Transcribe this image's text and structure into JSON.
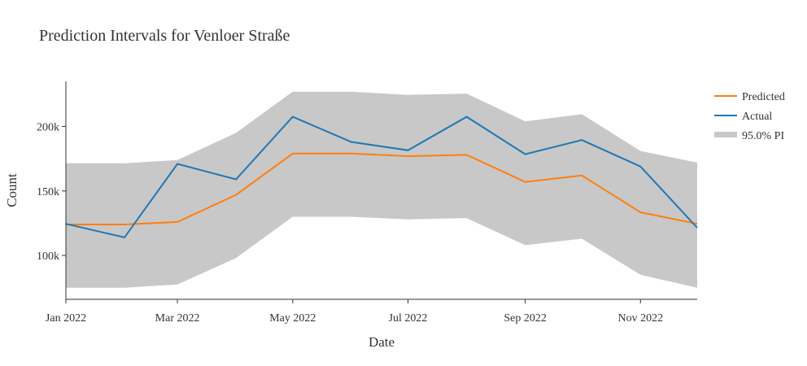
{
  "chart_data": {
    "type": "line",
    "title": "Prediction Intervals for Venloer Straße",
    "xlabel": "Date",
    "ylabel": "Count",
    "x": [
      "2022-01-01",
      "2022-02-01",
      "2022-03-01",
      "2022-04-01",
      "2022-05-01",
      "2022-06-01",
      "2022-07-01",
      "2022-08-01",
      "2022-09-01",
      "2022-10-01",
      "2022-11-01",
      "2022-12-01"
    ],
    "x_ticks": [
      "2022-01-01",
      "2022-03-01",
      "2022-05-01",
      "2022-07-01",
      "2022-09-01",
      "2022-11-01"
    ],
    "x_tick_labels": [
      "Jan 2022",
      "Mar 2022",
      "May 2022",
      "Jul 2022",
      "Sep 2022",
      "Nov 2022"
    ],
    "y_ticks": [
      100000,
      150000,
      200000
    ],
    "y_tick_labels": [
      "100k",
      "150k",
      "200k"
    ],
    "ylim": [
      66000,
      235000
    ],
    "xlim": [
      "2022-01-01",
      "2022-12-01"
    ],
    "grid": false,
    "legend_position": "top-right",
    "series": [
      {
        "name": "Predicted",
        "color": "#ff7f0e",
        "values": [
          124000,
          124000,
          126000,
          147000,
          179000,
          179000,
          177000,
          178000,
          157000,
          162000,
          133500,
          124500
        ]
      },
      {
        "name": "Actual",
        "color": "#1f77b4",
        "values": [
          124500,
          114000,
          171000,
          159000,
          207500,
          188000,
          181500,
          207500,
          178500,
          189500,
          169000,
          121500
        ]
      }
    ],
    "interval": {
      "name": "95.0% PI",
      "color": "#c8c8c8",
      "lower": [
        75000,
        75000,
        77500,
        98000,
        130000,
        130000,
        128000,
        129000,
        108000,
        113000,
        85000,
        75000
      ],
      "upper": [
        171500,
        171500,
        174000,
        195000,
        227000,
        227000,
        224500,
        225500,
        204000,
        209500,
        181000,
        172000
      ]
    }
  }
}
